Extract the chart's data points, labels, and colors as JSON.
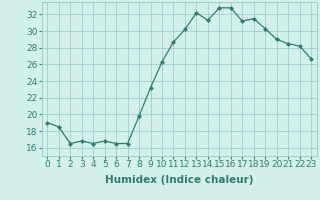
{
  "x": [
    0,
    1,
    2,
    3,
    4,
    5,
    6,
    7,
    8,
    9,
    10,
    11,
    12,
    13,
    14,
    15,
    16,
    17,
    18,
    19,
    20,
    21,
    22,
    23
  ],
  "y": [
    19.0,
    18.5,
    16.5,
    16.8,
    16.5,
    16.8,
    16.5,
    16.5,
    19.8,
    23.2,
    26.3,
    28.7,
    30.2,
    32.2,
    31.3,
    32.8,
    32.8,
    31.2,
    31.5,
    30.3,
    29.0,
    28.5,
    28.2,
    26.7
  ],
  "line_color": "#2d7d6e",
  "marker": "D",
  "marker_size": 2.0,
  "bg_color": "#d4f0ec",
  "grid_color": "#a0cccc",
  "xlabel": "Humidex (Indice chaleur)",
  "xlabel_fontsize": 7.5,
  "ylabel_ticks": [
    16,
    18,
    20,
    22,
    24,
    26,
    28,
    30,
    32
  ],
  "ylim": [
    15.0,
    33.5
  ],
  "xlim": [
    -0.5,
    23.5
  ],
  "tick_color": "#2d7d6e",
  "tick_fontsize": 6.5,
  "linewidth": 0.9
}
